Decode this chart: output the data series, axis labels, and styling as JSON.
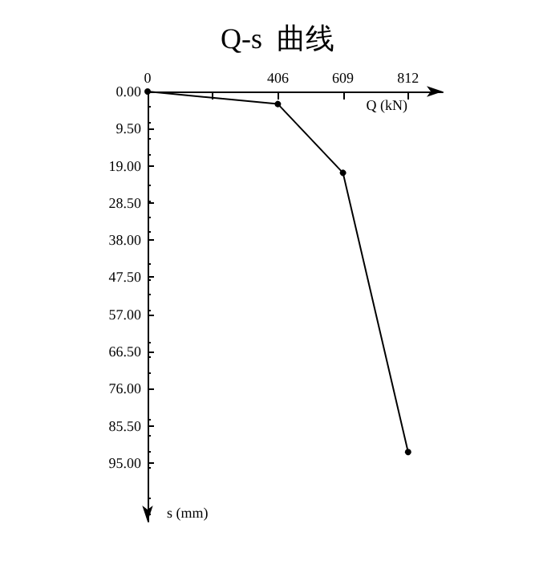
{
  "chart_data": {
    "type": "line",
    "title": "Q-s  曲线",
    "xlabel": "Q (kN)",
    "ylabel": "s (mm)",
    "x": [
      0,
      406,
      609,
      812
    ],
    "series": [
      {
        "color": "#000000",
        "values": [
          0,
          3.2,
          20.8,
          92.2
        ]
      }
    ],
    "xlim": [
      0,
      920
    ],
    "xticks": [
      0,
      {
        "value": 203,
        "label": null
      },
      406,
      609,
      812
    ],
    "ylim": [
      110,
      0
    ],
    "yticks": [
      {
        "value": 0,
        "label": "0.00"
      },
      {
        "value": 9.5,
        "label": "9.50"
      },
      {
        "value": 19,
        "label": "19.00"
      },
      {
        "value": 28.5,
        "label": "28.50"
      },
      {
        "value": 38,
        "label": "38.00"
      },
      {
        "value": 47.5,
        "label": "47.50"
      },
      {
        "value": 57,
        "label": "57.00"
      },
      {
        "value": 66.5,
        "label": "66.50"
      },
      {
        "value": 76,
        "label": "76.00"
      },
      {
        "value": 85.5,
        "label": "85.50"
      },
      {
        "value": 95,
        "label": "95.00"
      }
    ],
    "grid": false,
    "marker": "circle",
    "line_style": "solid"
  }
}
